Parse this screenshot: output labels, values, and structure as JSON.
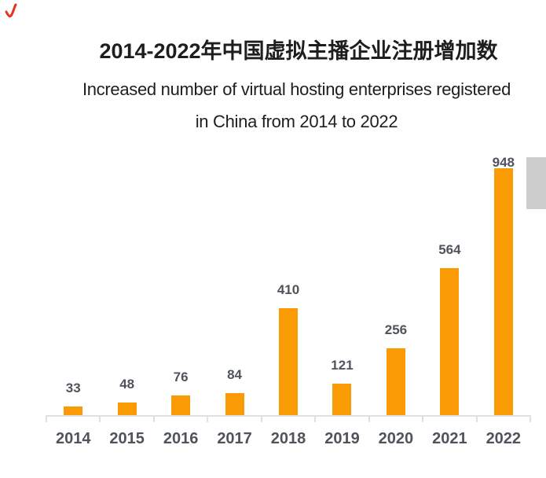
{
  "header": {
    "title": "2014-2022年中国虚拟主播企业注册增加数",
    "subtitle_line1": "Increased number of virtual hosting enterprises registered",
    "subtitle_line2": "in China from 2014 to 2022"
  },
  "chart_data": {
    "type": "bar",
    "title": "2014-2022年中国虚拟主播企业注册增加数",
    "subtitle": "Increased number of virtual hosting enterprises registered in China from 2014 to 2022",
    "categories": [
      "2014",
      "2015",
      "2016",
      "2017",
      "2018",
      "2019",
      "2020",
      "2021",
      "2022"
    ],
    "values": [
      33,
      48,
      76,
      84,
      410,
      121,
      256,
      564,
      948
    ],
    "xlabel": "",
    "ylabel": "",
    "ylim": [
      0,
      960
    ],
    "grid": false,
    "legend": false,
    "data_labels": true,
    "bar_color": "#FA9B05",
    "label_color": "#4F545C",
    "axis_color": "#E0E0E0"
  },
  "decorations": {
    "pen_mark_color": "#E8321C",
    "scrollbar_color": "#CDCDCD"
  }
}
